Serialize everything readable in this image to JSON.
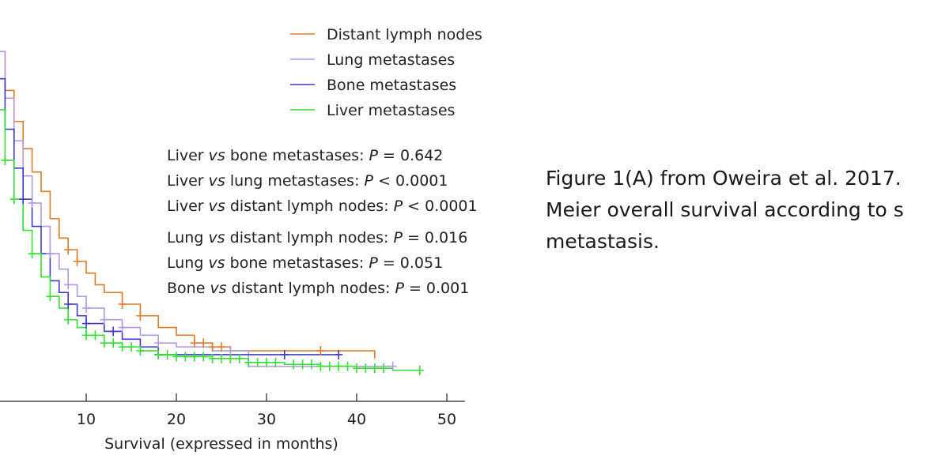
{
  "caption": {
    "lines": [
      "Figure 1(A) from Oweira et al. 2017.",
      "Meier overall survival according to s",
      "metastasis."
    ]
  },
  "chart_data": {
    "type": "line",
    "subtype": "kaplan-meier-step",
    "xlabel": "Survival (expressed in months)",
    "xticks": [
      10,
      20,
      30,
      40,
      50
    ],
    "xlim": [
      0,
      52
    ],
    "ylim": [
      0,
      1
    ],
    "legend_position": "top-right",
    "series": [
      {
        "name": "Distant lymph nodes",
        "color": "#e07b2a",
        "x": [
          0,
          1,
          2,
          3,
          4,
          5,
          6,
          7,
          8,
          9,
          10,
          11,
          12,
          14,
          16,
          18,
          20,
          22,
          24,
          26,
          42
        ],
        "y": [
          0.9,
          0.8,
          0.72,
          0.65,
          0.59,
          0.54,
          0.47,
          0.42,
          0.39,
          0.36,
          0.33,
          0.3,
          0.28,
          0.25,
          0.22,
          0.19,
          0.17,
          0.15,
          0.14,
          0.13,
          0.11
        ],
        "censor_x": [
          8,
          9,
          14,
          16,
          22,
          23,
          24,
          25,
          36
        ]
      },
      {
        "name": "Lung metastases",
        "color": "#b39ae0",
        "x": [
          0,
          1,
          2,
          3,
          4,
          5,
          6,
          7,
          8,
          9,
          10,
          12,
          14,
          16,
          18,
          20,
          24,
          28
        ],
        "y": [
          0.9,
          0.78,
          0.67,
          0.58,
          0.51,
          0.45,
          0.38,
          0.34,
          0.3,
          0.27,
          0.24,
          0.21,
          0.19,
          0.17,
          0.15,
          0.14,
          0.13,
          0.09
        ],
        "censor_x": [
          4,
          6,
          8,
          10,
          12,
          14,
          18,
          26,
          44
        ]
      },
      {
        "name": "Bone metastases",
        "color": "#3c3cc8",
        "x": [
          0,
          1,
          2,
          3,
          4,
          5,
          6,
          7,
          8,
          9,
          10,
          12,
          14,
          16,
          18,
          20,
          22,
          24,
          26
        ],
        "y": [
          0.83,
          0.7,
          0.6,
          0.52,
          0.45,
          0.38,
          0.31,
          0.28,
          0.25,
          0.22,
          0.2,
          0.18,
          0.16,
          0.14,
          0.12,
          0.12,
          0.12,
          0.12,
          0.12
        ],
        "censor_x": [
          3,
          8,
          10,
          13,
          18,
          32,
          38
        ]
      },
      {
        "name": "Liver metastases",
        "color": "#33e033",
        "x": [
          0,
          1,
          2,
          3,
          4,
          5,
          6,
          7,
          8,
          9,
          10,
          12,
          14,
          16,
          18,
          20,
          24,
          28,
          32,
          36,
          40,
          44,
          47
        ],
        "y": [
          0.75,
          0.62,
          0.52,
          0.44,
          0.38,
          0.32,
          0.27,
          0.24,
          0.21,
          0.19,
          0.17,
          0.15,
          0.14,
          0.13,
          0.12,
          0.115,
          0.11,
          0.1,
          0.095,
          0.09,
          0.085,
          0.08,
          0.08
        ],
        "censor_x": [
          1,
          2,
          4,
          6,
          8,
          10,
          11,
          12,
          13,
          14,
          15,
          16,
          18,
          19,
          20,
          21,
          22,
          23,
          24,
          25,
          26,
          27,
          28,
          29,
          30,
          31,
          33,
          34,
          35,
          36,
          37,
          38,
          39,
          40,
          41,
          42,
          43,
          47
        ]
      }
    ],
    "annotations": [
      {
        "a": "Liver ",
        "vs": "vs",
        "b": " bone metastases: ",
        "p": "P",
        "rest": " = 0.642"
      },
      {
        "a": "Liver ",
        "vs": "vs",
        "b": " lung metastases: ",
        "p": "P",
        "rest": " < 0.0001"
      },
      {
        "a": "Liver ",
        "vs": "vs",
        "b": " distant lymph nodes: ",
        "p": "P",
        "rest": " < 0.0001"
      },
      {
        "a": "Lung ",
        "vs": "vs",
        "b": " distant lymph nodes: ",
        "p": "P",
        "rest": " = 0.016"
      },
      {
        "a": "Lung ",
        "vs": "vs",
        "b": " bone metastases: ",
        "p": "P",
        "rest": " = 0.051"
      },
      {
        "a": "Bone ",
        "vs": "vs",
        "b": " distant lymph nodes: ",
        "p": "P",
        "rest": " = 0.001"
      }
    ]
  }
}
